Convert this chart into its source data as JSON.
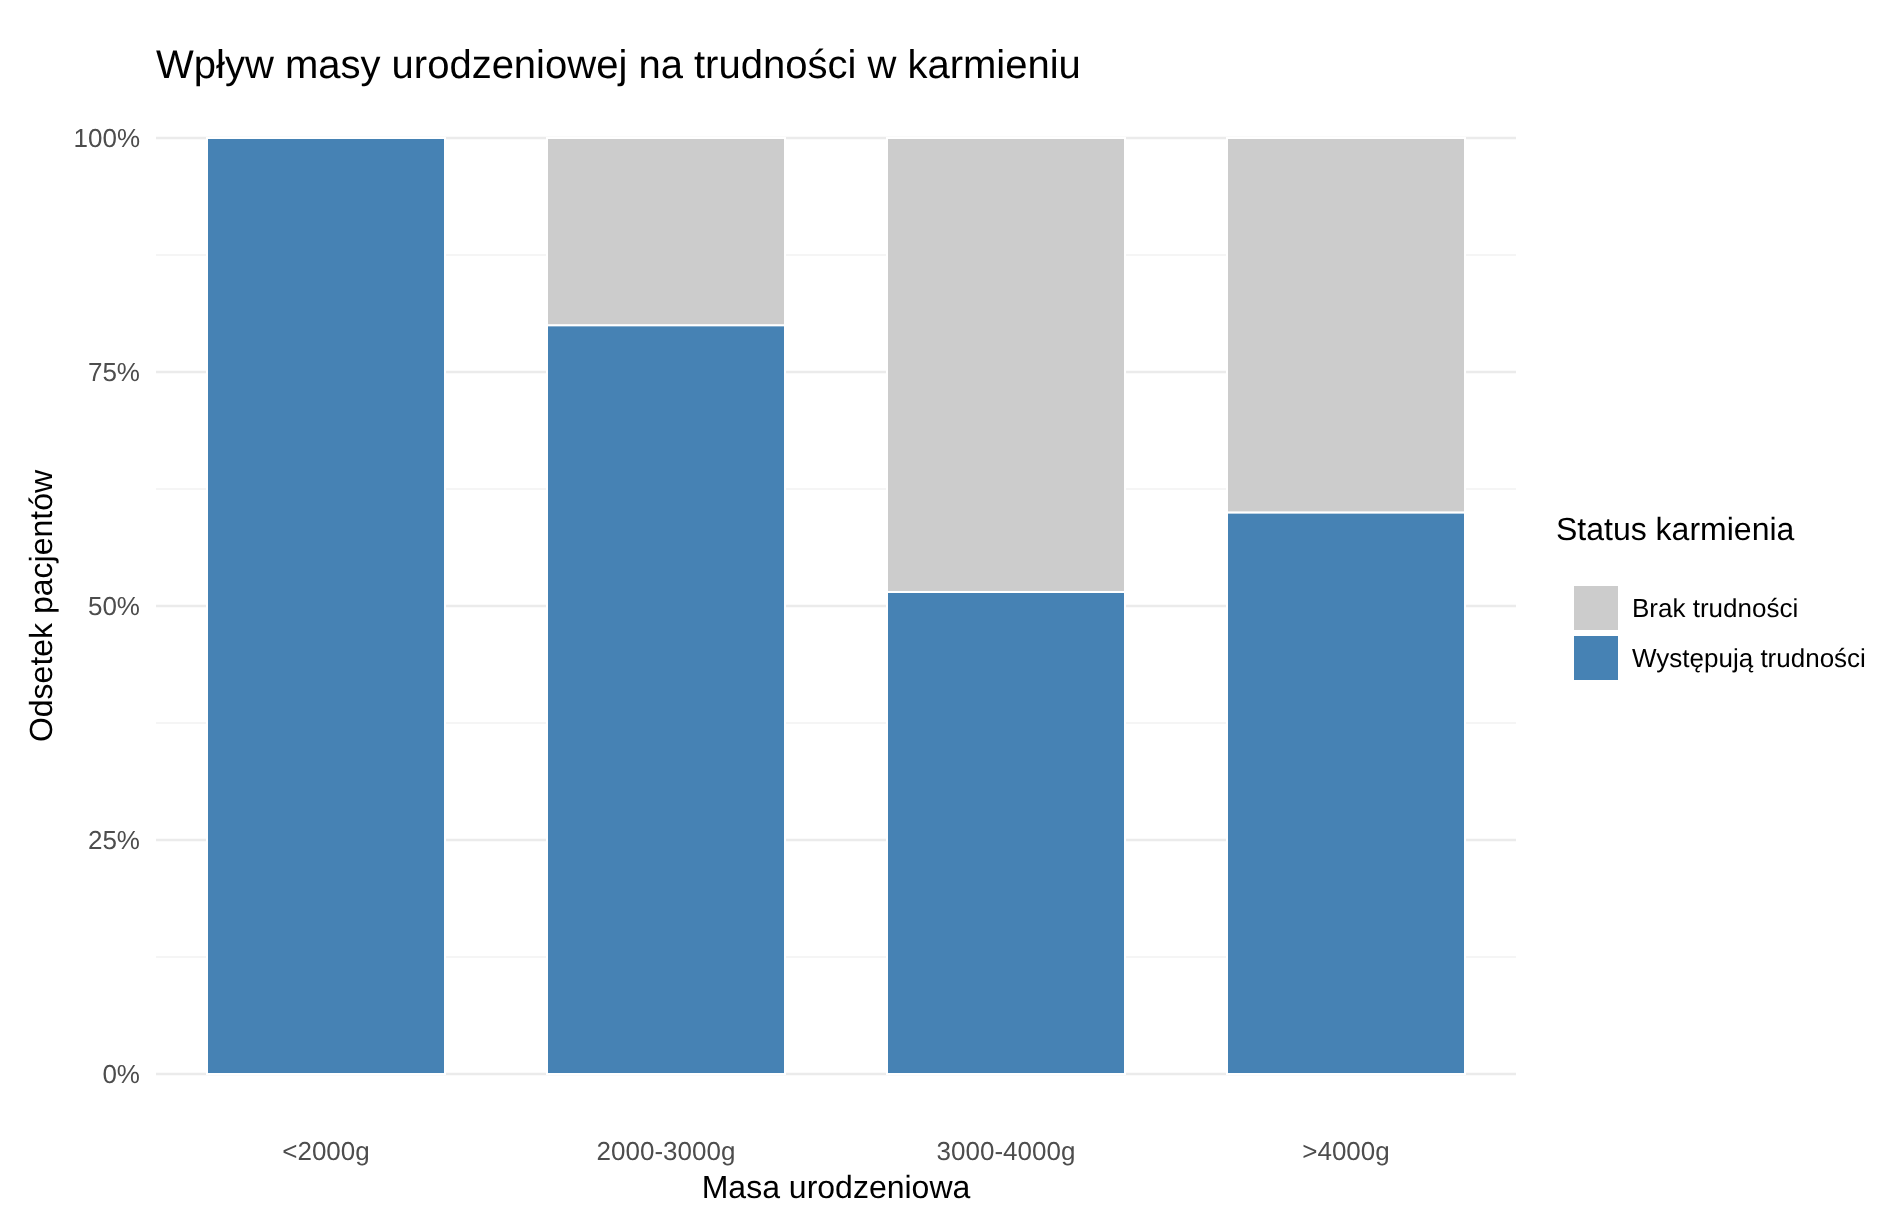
{
  "chart_data": {
    "type": "bar",
    "title": "Wpływ masy urodzeniowej na trudności w karmieniu",
    "xlabel": "Masa urodzeniowa",
    "ylabel": "Odsetek pacjentów",
    "legend_title": "Status karmienia",
    "categories": [
      "<2000g",
      "2000-3000g",
      "3000-4000g",
      ">4000g"
    ],
    "stacked": true,
    "series": [
      {
        "name": "Występują trudności",
        "color": "#4682b4",
        "values": [
          100,
          80,
          51.5,
          60
        ]
      },
      {
        "name": "Brak trudności",
        "color": "#cccccc",
        "values": [
          0,
          20,
          48.5,
          40
        ]
      }
    ],
    "ylim": [
      0,
      100
    ],
    "yticks": [
      {
        "value": 0,
        "label": "0%"
      },
      {
        "value": 12.5,
        "label": null
      },
      {
        "value": 25,
        "label": "25%"
      },
      {
        "value": 37.5,
        "label": null
      },
      {
        "value": 50,
        "label": "50%"
      },
      {
        "value": 62.5,
        "label": null
      },
      {
        "value": 75,
        "label": "75%"
      },
      {
        "value": 87.5,
        "label": null
      },
      {
        "value": 100,
        "label": "100%"
      }
    ],
    "grid": "y",
    "legend": "right"
  }
}
